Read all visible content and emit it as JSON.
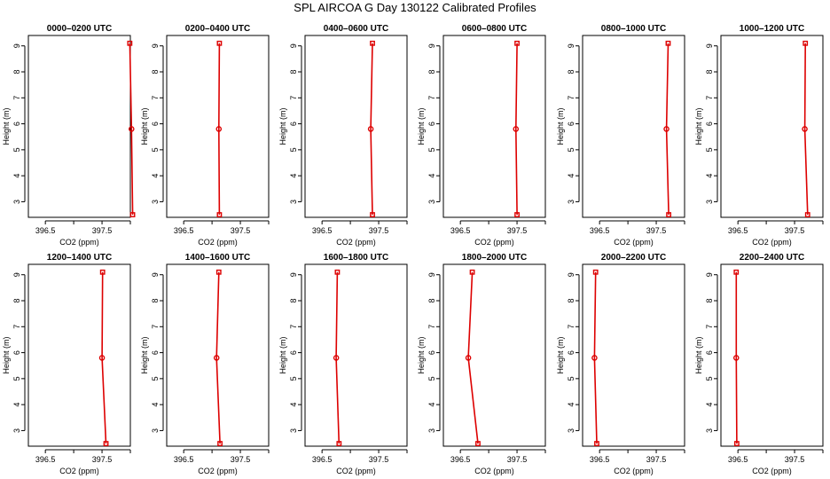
{
  "title": "SPL AIRCOA G  Day 130122  Calibrated Profiles",
  "chart_data": {
    "type": "line",
    "layout": "2 rows x 6 panels",
    "xlabel": "CO2 (ppm)",
    "ylabel": "Height (m)",
    "xlim": [
      396.2,
      398.0
    ],
    "ylim": [
      2.4,
      9.4
    ],
    "x_ticks": [
      396.5,
      397.0,
      397.5,
      398.0
    ],
    "x_tick_labels": [
      "396.5",
      "",
      "397.5",
      ""
    ],
    "y_ticks": [
      3,
      4,
      5,
      6,
      7,
      8,
      9
    ],
    "y_tick_labels": [
      "3",
      "4",
      "5",
      "6",
      "7",
      "8",
      "9"
    ],
    "heights": [
      9.1,
      5.8,
      2.5
    ],
    "line_color": "#dd0000",
    "marker_color": "#dd0000",
    "grid": false,
    "panels": [
      {
        "title": "0000–0200 UTC",
        "co2": [
          397.99,
          398.02,
          398.04
        ]
      },
      {
        "title": "0200–0400 UTC",
        "co2": [
          397.13,
          397.12,
          397.13
        ]
      },
      {
        "title": "0400–0600 UTC",
        "co2": [
          397.39,
          397.36,
          397.39
        ]
      },
      {
        "title": "0600–0800 UTC",
        "co2": [
          397.5,
          397.48,
          397.5
        ]
      },
      {
        "title": "0800–1000 UTC",
        "co2": [
          397.71,
          397.68,
          397.72
        ]
      },
      {
        "title": "1000–1200 UTC",
        "co2": [
          397.69,
          397.68,
          397.73
        ]
      },
      {
        "title": "1200–1400 UTC",
        "co2": [
          397.51,
          397.5,
          397.57
        ]
      },
      {
        "title": "1400–1600 UTC",
        "co2": [
          397.12,
          397.08,
          397.14
        ]
      },
      {
        "title": "1600–1800 UTC",
        "co2": [
          396.77,
          396.75,
          396.8
        ]
      },
      {
        "title": "1800–2000 UTC",
        "co2": [
          396.71,
          396.64,
          396.81
        ]
      },
      {
        "title": "2000–2200 UTC",
        "co2": [
          396.43,
          396.41,
          396.45
        ]
      },
      {
        "title": "2200–2400 UTC",
        "co2": [
          396.47,
          396.47,
          396.48
        ]
      }
    ]
  }
}
